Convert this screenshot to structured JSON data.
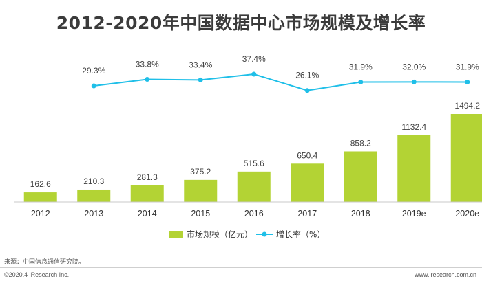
{
  "chart_data": {
    "type": "bar",
    "title": "2012-2020年中国数据中心市场规模及增长率",
    "categories": [
      "2012",
      "2013",
      "2014",
      "2015",
      "2016",
      "2017",
      "2018",
      "2019e",
      "2020e"
    ],
    "series": [
      {
        "name": "市场规模（亿元）",
        "type": "bar",
        "values": [
          162.6,
          210.3,
          281.3,
          375.2,
          515.6,
          650.4,
          858.2,
          1132.4,
          1494.2
        ],
        "labels": [
          "162.6",
          "210.3",
          "281.3",
          "375.2",
          "515.6",
          "650.4",
          "858.2",
          "1132.4",
          "1494.2"
        ],
        "color": "#b3d334"
      },
      {
        "name": "增长率（%）",
        "type": "line",
        "values": [
          null,
          29.3,
          33.8,
          33.4,
          37.4,
          26.1,
          31.9,
          32.0,
          31.9
        ],
        "labels": [
          "",
          "29.3%",
          "33.8%",
          "33.4%",
          "37.4%",
          "26.1%",
          "31.9%",
          "32.0%",
          "31.9%"
        ],
        "color": "#1fbfe8"
      }
    ],
    "legend_position": "bottom",
    "grid": false
  },
  "source": "来源：中国信息通信研究院。",
  "footer": {
    "copyright": "©2020.4 iResearch Inc.",
    "website": "www.iresearch.com.cn"
  }
}
